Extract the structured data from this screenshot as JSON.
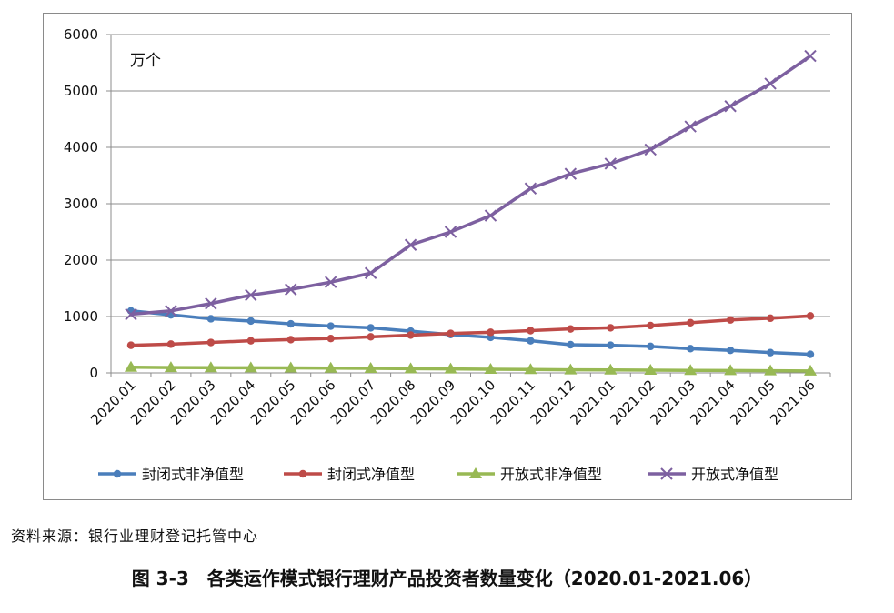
{
  "chart_data": {
    "type": "line",
    "unit_label": "万个",
    "categories": [
      "2020.01",
      "2020.02",
      "2020.03",
      "2020.04",
      "2020.05",
      "2020.06",
      "2020.07",
      "2020.08",
      "2020.09",
      "2020.10",
      "2020.11",
      "2020.12",
      "2021.01",
      "2021.02",
      "2021.03",
      "2021.04",
      "2021.05",
      "2021.06"
    ],
    "ylim": [
      0,
      6000
    ],
    "yticks": [
      0,
      1000,
      2000,
      3000,
      4000,
      5000,
      6000
    ],
    "grid": true,
    "legend_position": "bottom",
    "series": [
      {
        "name": "封闭式非净值型",
        "color": "#4a7ebb",
        "marker": "circle",
        "values": [
          1100,
          1030,
          960,
          920,
          870,
          830,
          800,
          740,
          680,
          630,
          570,
          500,
          490,
          470,
          430,
          400,
          360,
          330
        ]
      },
      {
        "name": "封闭式净值型",
        "color": "#be4b48",
        "marker": "circle",
        "values": [
          490,
          510,
          540,
          570,
          590,
          610,
          640,
          670,
          700,
          720,
          750,
          780,
          800,
          840,
          890,
          940,
          970,
          1010
        ]
      },
      {
        "name": "开放式非净值型",
        "color": "#98b954",
        "marker": "triangle",
        "values": [
          100,
          95,
          92,
          90,
          88,
          85,
          80,
          75,
          70,
          65,
          60,
          55,
          52,
          48,
          45,
          42,
          38,
          35
        ]
      },
      {
        "name": "开放式净值型",
        "color": "#7d60a0",
        "marker": "x",
        "values": [
          1040,
          1100,
          1230,
          1380,
          1480,
          1610,
          1770,
          2270,
          2500,
          2790,
          3270,
          3530,
          3710,
          3960,
          4370,
          4730,
          5130,
          5620
        ]
      }
    ]
  },
  "source_note": "资料来源：银行业理财登记托管中心",
  "caption": "图 3-3　各类运作模式银行理财产品投资者数量变化（2020.01-2021.06）"
}
